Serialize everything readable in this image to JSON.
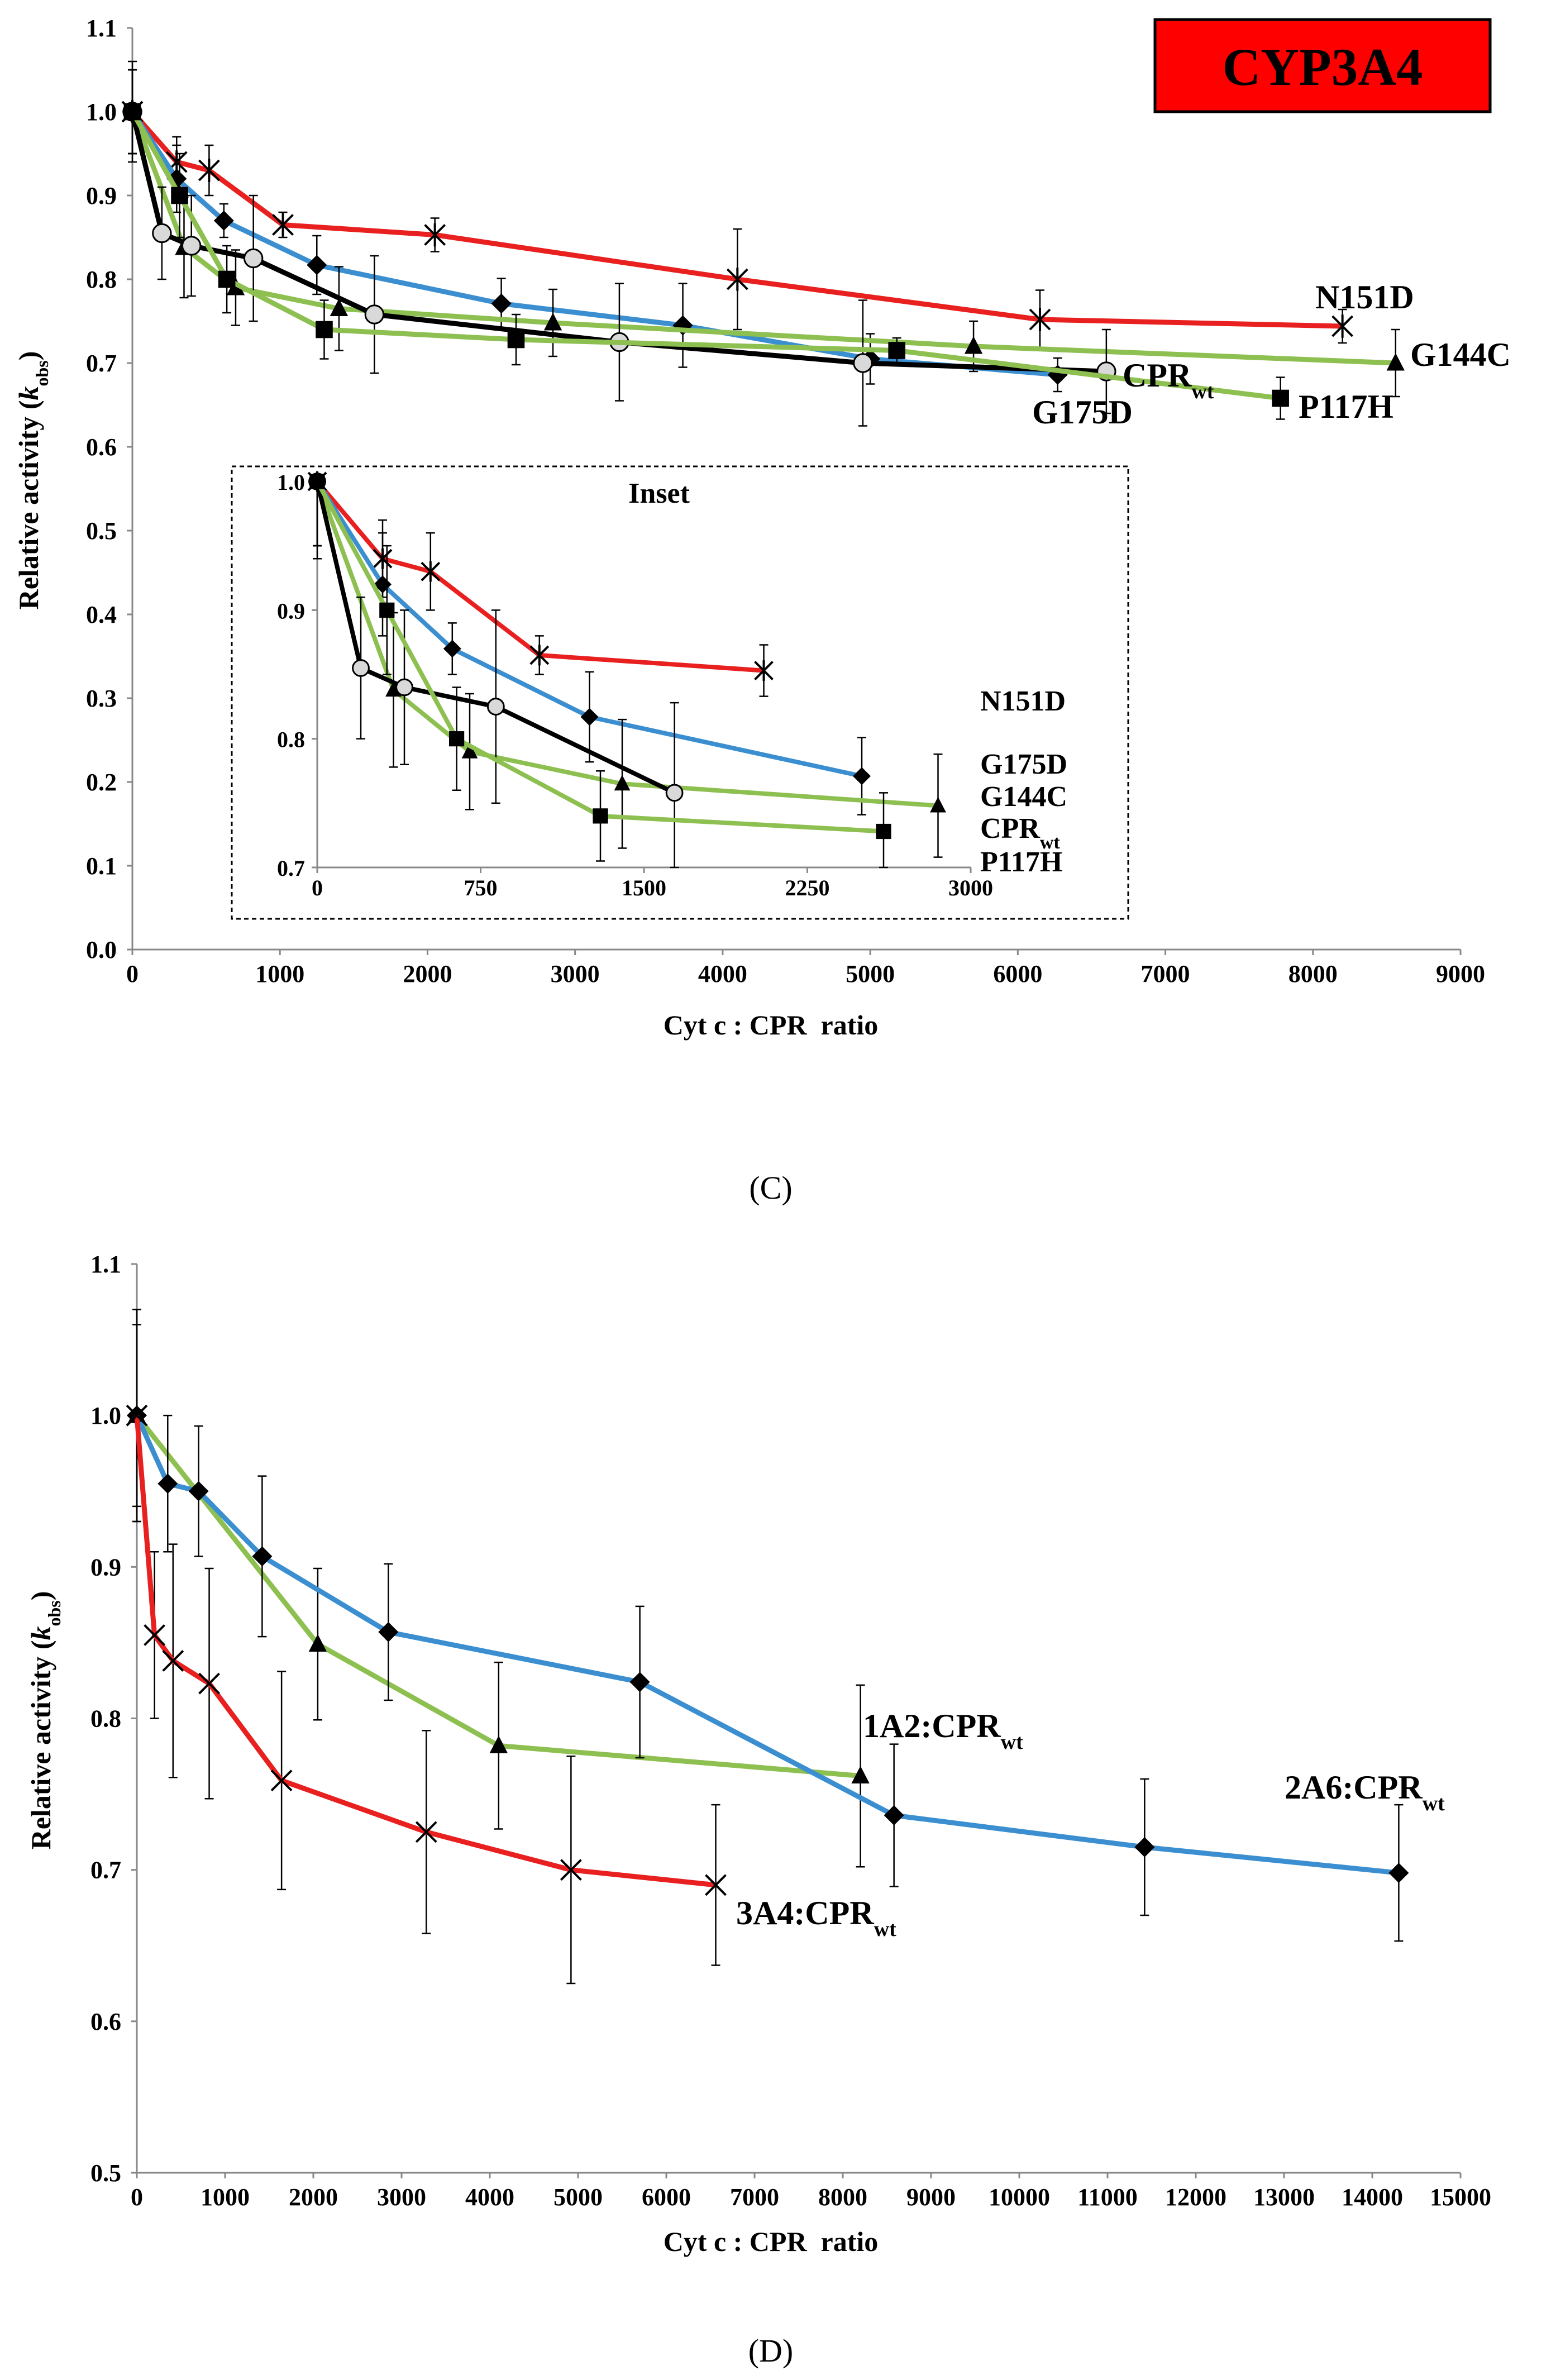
{
  "panel_labels": {
    "c": "(C)",
    "d": "(D)"
  },
  "chart_data": [
    {
      "type": "line",
      "title": "CYP3A4",
      "title_color": "#ff0000",
      "xlabel": "Cyt c : CPR  ratio",
      "ylabel": "Relative activity (kobs)",
      "xlim": [
        0,
        9000
      ],
      "ylim": [
        0.0,
        1.1
      ],
      "xticks": [
        0,
        1000,
        2000,
        3000,
        4000,
        5000,
        6000,
        7000,
        8000,
        9000
      ],
      "yticks": [
        "0.0",
        "0.1",
        "0.2",
        "0.3",
        "0.4",
        "0.5",
        "0.6",
        "0.7",
        "0.8",
        "0.9",
        "1.0",
        "1.1"
      ],
      "grid": false,
      "series": [
        {
          "name": "N151D",
          "color": "#e8201f",
          "marker": "star",
          "x": [
            0,
            300,
            520,
            1020,
            2050,
            4100,
            6150,
            8200
          ],
          "y": [
            1.0,
            0.94,
            0.93,
            0.865,
            0.853,
            0.8,
            0.752,
            0.744
          ],
          "err": [
            0.05,
            0.03,
            0.03,
            0.015,
            0.02,
            0.06,
            0.035,
            0.02
          ]
        },
        {
          "name": "G175D",
          "color": "#3b8fd0",
          "marker": "diamond",
          "x": [
            0,
            300,
            620,
            1250,
            2500,
            3730,
            5000,
            6270
          ],
          "y": [
            1.0,
            0.92,
            0.87,
            0.817,
            0.771,
            0.745,
            0.705,
            0.686
          ],
          "err": [
            0.05,
            0.04,
            0.02,
            0.035,
            0.03,
            0.05,
            0.03,
            0.02
          ]
        },
        {
          "name": "G144C",
          "color": "#8dc050",
          "marker": "triangle",
          "x": [
            0,
            350,
            700,
            1400,
            2850,
            5700,
            8560
          ],
          "y": [
            1.0,
            0.838,
            0.79,
            0.765,
            0.748,
            0.72,
            0.7
          ],
          "err": [
            0.05,
            0.06,
            0.045,
            0.05,
            0.04,
            0.03,
            0.04
          ]
        },
        {
          "name": "CPRwt",
          "color": "#000000",
          "marker": "circle",
          "x": [
            0,
            200,
            400,
            820,
            1640,
            3300,
            4950,
            6600
          ],
          "y": [
            1.0,
            0.855,
            0.84,
            0.825,
            0.758,
            0.725,
            0.7,
            0.69
          ],
          "err": [
            0.06,
            0.055,
            0.06,
            0.075,
            0.07,
            0.07,
            0.075,
            0.05
          ]
        },
        {
          "name": "P117H",
          "color": "#8dc050",
          "marker": "square",
          "x": [
            0,
            320,
            640,
            1300,
            2600,
            5180,
            7780
          ],
          "y": [
            1.0,
            0.9,
            0.8,
            0.74,
            0.728,
            0.715,
            0.658
          ],
          "err": [
            0.05,
            0.05,
            0.04,
            0.035,
            0.03,
            0.015,
            0.025
          ]
        }
      ],
      "labels": {
        "n151d": "N151D",
        "g144c": "G144C",
        "p117h": "P117H",
        "g175d": "G175D",
        "cpr": "CPR",
        "cpr_sub": "wt"
      },
      "inset": {
        "title": "Inset",
        "xlim": [
          0,
          3000
        ],
        "ylim": [
          0.7,
          1.0
        ],
        "xticks": [
          "0",
          "750",
          "1500",
          "2250",
          "3000"
        ],
        "yticks": [
          "0.7",
          "0.8",
          "0.9",
          "1.0"
        ],
        "labels": {
          "n151d": "N151D",
          "g175d": "G175D",
          "g144c": "G144C",
          "cpr": "CPR",
          "cpr_sub": "wt",
          "p117h": "P117H"
        }
      }
    },
    {
      "type": "line",
      "xlabel": "Cyt c : CPR  ratio",
      "ylabel": "Relative activity (kobs)",
      "xlim": [
        0,
        15000
      ],
      "ylim": [
        0.5,
        1.1
      ],
      "xticks": [
        0,
        1000,
        2000,
        3000,
        4000,
        5000,
        6000,
        7000,
        8000,
        9000,
        10000,
        11000,
        12000,
        13000,
        14000,
        15000
      ],
      "yticks": [
        "0.5",
        "0.6",
        "0.7",
        "0.8",
        "0.9",
        "1.0",
        "1.1"
      ],
      "grid": false,
      "series": [
        {
          "name": "1A2:CPRwt",
          "color": "#8dc050",
          "marker": "triangle",
          "x": [
            0,
            2050,
            4100,
            8200
          ],
          "y": [
            1.0,
            0.849,
            0.782,
            0.762
          ],
          "err": [
            0.07,
            0.05,
            0.055,
            0.06
          ]
        },
        {
          "name": "2A6:CPRwt",
          "color": "#3b8fd0",
          "marker": "diamond",
          "x": [
            0,
            350,
            700,
            1420,
            2850,
            5700,
            8580,
            11420,
            14300
          ],
          "y": [
            1.0,
            0.955,
            0.95,
            0.907,
            0.857,
            0.824,
            0.736,
            0.715,
            0.698
          ],
          "err": [
            0.07,
            0.045,
            0.043,
            0.053,
            0.045,
            0.05,
            0.047,
            0.045,
            0.045
          ]
        },
        {
          "name": "3A4:CPRwt",
          "color": "#e8201f",
          "marker": "x",
          "x": [
            0,
            200,
            410,
            820,
            1640,
            3280,
            4920,
            6560
          ],
          "y": [
            1.0,
            0.855,
            0.838,
            0.823,
            0.759,
            0.725,
            0.7,
            0.69
          ],
          "err": [
            0.06,
            0.055,
            0.077,
            0.076,
            0.072,
            0.067,
            0.075,
            0.053
          ]
        }
      ],
      "labels": {
        "a12": "1A2:CPR",
        "a26": "2A6:CPR",
        "a34": "3A4:CPR",
        "sub": "wt"
      }
    }
  ]
}
